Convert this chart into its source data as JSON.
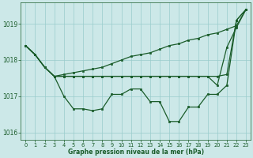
{
  "bg_color": "#cce8e8",
  "grid_color": "#99cccc",
  "line_color": "#1a5c2a",
  "xlabel": "Graphe pression niveau de la mer (hPa)",
  "xlabel_color": "#1a5c2a",
  "tick_color": "#1a5c2a",
  "ylim": [
    1015.8,
    1019.6
  ],
  "xlim": [
    -0.5,
    23.5
  ],
  "yticks": [
    1016,
    1017,
    1018,
    1019
  ],
  "xticks": [
    0,
    1,
    2,
    3,
    4,
    5,
    6,
    7,
    8,
    9,
    10,
    11,
    12,
    13,
    14,
    15,
    16,
    17,
    18,
    19,
    20,
    21,
    22,
    23
  ],
  "s1": [
    1018.4,
    1018.15,
    1017.8,
    1017.55,
    1017.6,
    1017.65,
    1017.7,
    1017.75,
    1017.8,
    1017.9,
    1018.0,
    1018.1,
    1018.15,
    1018.2,
    1018.3,
    1018.4,
    1018.45,
    1018.55,
    1018.6,
    1018.7,
    1018.75,
    1018.85,
    1018.95,
    1019.4
  ],
  "s2": [
    1018.4,
    1018.15,
    1017.8,
    1017.55,
    1017.55,
    1017.55,
    1017.55,
    1017.55,
    1017.55,
    1017.55,
    1017.55,
    1017.55,
    1017.55,
    1017.55,
    1017.55,
    1017.55,
    1017.55,
    1017.55,
    1017.55,
    1017.55,
    1017.55,
    1017.6,
    1019.1,
    1019.4
  ],
  "s3": [
    1018.4,
    1018.15,
    1017.8,
    1017.55,
    1017.55,
    1017.55,
    1017.55,
    1017.55,
    1017.55,
    1017.55,
    1017.55,
    1017.55,
    1017.55,
    1017.55,
    1017.55,
    1017.55,
    1017.55,
    1017.55,
    1017.55,
    1017.55,
    1017.3,
    1018.35,
    1018.9,
    1019.4
  ],
  "s4": [
    1018.4,
    1018.15,
    1017.8,
    1017.55,
    1017.0,
    1016.65,
    1016.65,
    1016.6,
    1016.65,
    1017.05,
    1017.05,
    1017.2,
    1017.2,
    1016.85,
    1016.85,
    1016.3,
    1016.3,
    1016.7,
    1016.7,
    1017.05,
    1017.05,
    1017.3,
    1019.1,
    1019.4
  ]
}
